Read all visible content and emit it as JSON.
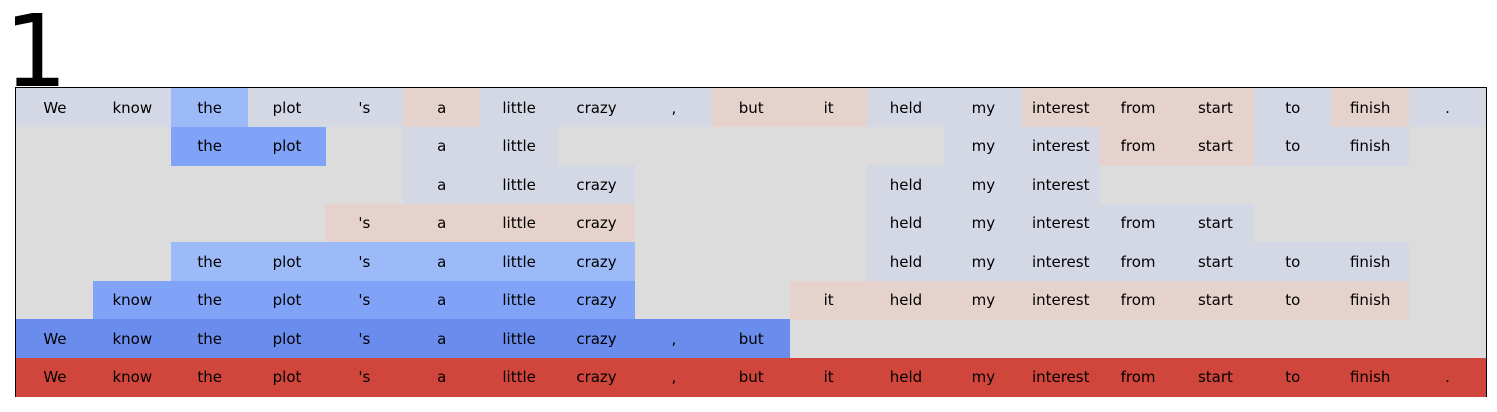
{
  "label": "1",
  "tokens": [
    "We",
    "know",
    "the",
    "plot",
    "'s",
    "a",
    "little",
    "crazy",
    ",",
    "but",
    "it",
    "held",
    "my",
    "interest",
    "from",
    "start",
    "to",
    "finish",
    "."
  ],
  "colors": {
    "background": "#dcdcdc",
    "g": "#d3d8e4",
    "p": "#e6d2cc",
    "b1": "#9dbaf8",
    "b2": "#80a3f8",
    "b3": "#6a8ded",
    "r": "#d0463c"
  },
  "rows": [
    [
      "g",
      "g",
      "b1",
      "g",
      "g",
      "p",
      "g",
      "g",
      "g",
      "p",
      "p",
      "g",
      "g",
      "p",
      "p",
      "p",
      "g",
      "p",
      "g"
    ],
    [
      null,
      null,
      "b2",
      "b2",
      null,
      "g",
      "g",
      null,
      null,
      null,
      null,
      null,
      "g",
      "g",
      "p",
      "p",
      "g",
      "g",
      null
    ],
    [
      null,
      null,
      null,
      null,
      null,
      "g",
      "g",
      "g",
      null,
      null,
      null,
      "g",
      "g",
      "g",
      null,
      null,
      null,
      null,
      null
    ],
    [
      null,
      null,
      null,
      null,
      "p",
      "p",
      "p",
      "p",
      null,
      null,
      null,
      "g",
      "g",
      "g",
      "g",
      "g",
      null,
      null,
      null
    ],
    [
      null,
      null,
      "b1",
      "b1",
      "b1",
      "b1",
      "b1",
      "b1",
      null,
      null,
      null,
      "g",
      "g",
      "g",
      "g",
      "g",
      "g",
      "g",
      null
    ],
    [
      null,
      "b2",
      "b2",
      "b2",
      "b2",
      "b2",
      "b2",
      "b2",
      null,
      null,
      "p",
      "p",
      "p",
      "p",
      "p",
      "p",
      "p",
      "p",
      null
    ],
    [
      "b3",
      "b3",
      "b3",
      "b3",
      "b3",
      "b3",
      "b3",
      "b3",
      "b3",
      "b3",
      null,
      null,
      null,
      null,
      null,
      null,
      null,
      null,
      null
    ],
    [
      "r",
      "r",
      "r",
      "r",
      "r",
      "r",
      "r",
      "r",
      "r",
      "r",
      "r",
      "r",
      "r",
      "r",
      "r",
      "r",
      "r",
      "r",
      "r"
    ]
  ]
}
